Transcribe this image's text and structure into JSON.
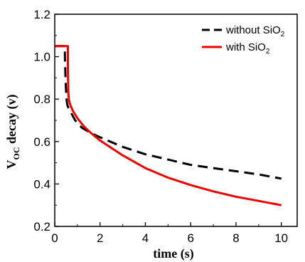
{
  "chart_data": {
    "type": "line",
    "xlabel": "time (s)",
    "ylabel_main": "V",
    "ylabel_sub": "OC",
    "ylabel_rest": " decay (v)",
    "xlim": [
      0,
      10.7
    ],
    "ylim": [
      0.2,
      1.2
    ],
    "xticks": [
      0,
      2,
      4,
      6,
      8,
      10
    ],
    "yticks": [
      0.2,
      0.4,
      0.6,
      0.8,
      1.0,
      1.2
    ],
    "xtick_labels": [
      "0",
      "2",
      "4",
      "6",
      "8",
      "10"
    ],
    "ytick_labels": [
      "0.2",
      "0.4",
      "0.6",
      "0.8",
      "1.0",
      "1.2"
    ],
    "legend_position": "top-right",
    "series": [
      {
        "name": "without SiO",
        "name_sub": "2",
        "color": "#000000",
        "style": "dashed",
        "x": [
          0.0,
          0.45,
          0.45,
          0.48,
          0.52,
          0.55,
          0.6,
          0.7,
          0.9,
          1.2,
          1.6,
          2.0,
          3.0,
          4.0,
          5.0,
          6.0,
          7.0,
          8.0,
          9.0,
          10.0
        ],
        "y": [
          1.05,
          1.05,
          1.0,
          0.88,
          0.8,
          0.775,
          0.76,
          0.74,
          0.7,
          0.665,
          0.64,
          0.62,
          0.575,
          0.54,
          0.515,
          0.49,
          0.475,
          0.46,
          0.445,
          0.425
        ]
      },
      {
        "name": "with SiO",
        "name_sub": "2",
        "color": "#ee0000",
        "style": "solid",
        "x": [
          0.0,
          0.58,
          0.58,
          0.6,
          0.62,
          0.65,
          0.7,
          0.8,
          1.0,
          1.3,
          1.6,
          2.0,
          3.0,
          4.0,
          5.0,
          6.0,
          7.0,
          8.0,
          9.0,
          10.0
        ],
        "y": [
          1.05,
          1.05,
          0.95,
          0.84,
          0.8,
          0.785,
          0.77,
          0.745,
          0.71,
          0.67,
          0.64,
          0.605,
          0.535,
          0.475,
          0.43,
          0.395,
          0.365,
          0.34,
          0.32,
          0.3
        ]
      }
    ]
  }
}
